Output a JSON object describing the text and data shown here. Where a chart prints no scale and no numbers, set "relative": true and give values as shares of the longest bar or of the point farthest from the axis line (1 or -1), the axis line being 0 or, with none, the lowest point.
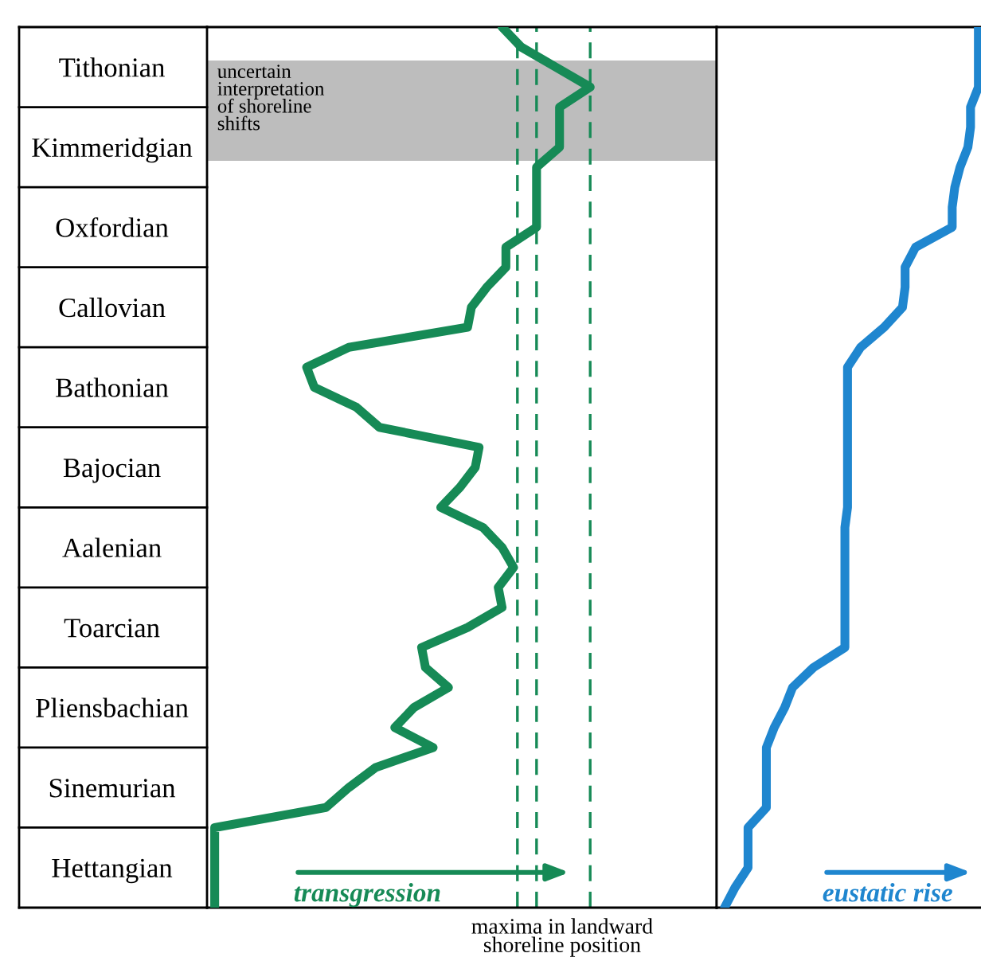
{
  "chart_data": [
    {
      "type": "line",
      "orientation": "horizontal",
      "relative": true,
      "categories": [
        null,
        null,
        "Tithonian",
        null,
        null,
        null,
        "Kimmeridgian",
        null,
        null,
        null,
        "Oxfordian",
        null,
        null,
        null,
        "Callovian",
        null,
        null,
        null,
        "Bathonian",
        null,
        null,
        null,
        "Bajocian",
        null,
        null,
        null,
        "Aalenian",
        null,
        null,
        null,
        "Toarcian",
        null,
        null,
        null,
        "Pliensbachian",
        null,
        null,
        null,
        "Sinemurian",
        null,
        null,
        null,
        "Hettangian",
        null,
        null
      ],
      "tick_labels": "y",
      "series": [
        {
          "color": "#168a56",
          "values": [
            0.77,
            0.82,
            0.91,
            1.0,
            0.92,
            0.92,
            0.92,
            0.86,
            0.86,
            0.86,
            0.86,
            0.78,
            0.78,
            0.73,
            0.69,
            0.68,
            0.37,
            0.26,
            0.28,
            0.39,
            0.45,
            0.71,
            0.7,
            0.66,
            0.61,
            0.72,
            0.77,
            0.8,
            0.76,
            0.77,
            0.68,
            0.56,
            0.57,
            0.63,
            0.54,
            0.49,
            0.59,
            0.44,
            0.37,
            0.31,
            0.02,
            0.02,
            0.02,
            0.02,
            0.02
          ]
        }
      ],
      "ref_lines": [
        {
          "axis": "x",
          "value": 0.81,
          "color": "#168a56",
          "line_style": "dashed"
        },
        {
          "axis": "x",
          "value": 0.86,
          "color": "#168a56",
          "line_style": "dashed"
        },
        {
          "axis": "x",
          "value": 1.0,
          "color": "#168a56",
          "line_style": "dashed"
        }
      ],
      "annotations": [
        "transgression",
        "maxima in landward\nshoreline position",
        "uncertain\ninterpretation\nof shoreline\nshifts"
      ]
    },
    {
      "type": "line",
      "orientation": "horizontal",
      "relative": true,
      "categories": [
        null,
        null,
        null,
        null,
        null,
        null,
        null,
        null,
        null,
        null,
        null,
        null,
        null,
        null,
        null,
        null,
        null,
        null,
        null,
        null,
        null,
        null,
        null,
        null,
        null,
        null,
        null,
        null,
        null,
        null,
        null,
        null,
        null,
        null,
        null,
        null,
        null,
        null,
        null,
        null,
        null,
        null,
        null,
        null,
        null
      ],
      "tick_labels": false,
      "series": [
        {
          "color": "#1f86cf",
          "values": [
            1.0,
            1.0,
            1.0,
            1.0,
            0.97,
            0.97,
            0.96,
            0.93,
            0.91,
            0.9,
            0.9,
            0.76,
            0.72,
            0.72,
            0.71,
            0.64,
            0.55,
            0.5,
            0.5,
            0.5,
            0.5,
            0.5,
            0.5,
            0.5,
            0.5,
            0.49,
            0.49,
            0.49,
            0.49,
            0.49,
            0.49,
            0.49,
            0.37,
            0.29,
            0.26,
            0.22,
            0.19,
            0.19,
            0.19,
            0.19,
            0.12,
            0.12,
            0.12,
            0.07,
            0.03
          ]
        }
      ],
      "annotations": [
        "eustatic rise"
      ]
    }
  ]
}
